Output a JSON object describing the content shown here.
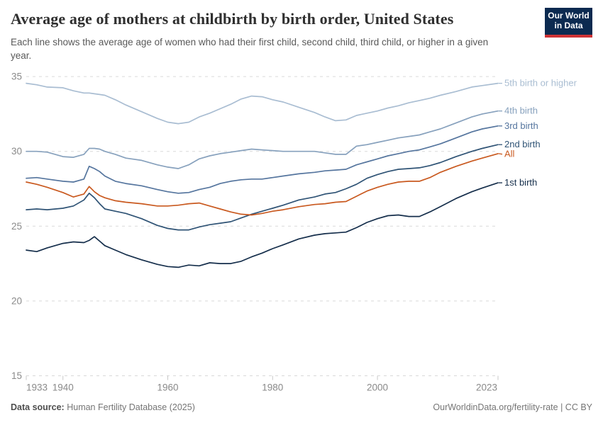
{
  "header": {
    "title": "Average age of mothers at childbirth by birth order, United States",
    "subtitle": "Each line shows the average age of women who had their first child, second child, third child, or higher in a given year.",
    "logo": {
      "line1": "Our World",
      "line2": "in Data",
      "bg_color": "#0c2a50",
      "accent_color": "#cf3235"
    }
  },
  "chart_data": {
    "type": "line",
    "xlabel": "",
    "ylabel": "",
    "xlim": [
      1933,
      2023
    ],
    "ylim": [
      15,
      35
    ],
    "grid": "horizontal-dashed",
    "legend_position": "right-of-line-ends",
    "xticks": [
      1933,
      1940,
      1960,
      1980,
      2000,
      2023
    ],
    "yticks": [
      15,
      20,
      25,
      30,
      35
    ],
    "x": [
      1933,
      1935,
      1937,
      1940,
      1942,
      1944,
      1945,
      1946,
      1947,
      1948,
      1950,
      1952,
      1955,
      1958,
      1960,
      1962,
      1964,
      1966,
      1968,
      1970,
      1972,
      1974,
      1976,
      1978,
      1980,
      1982,
      1985,
      1988,
      1990,
      1992,
      1994,
      1996,
      1998,
      2000,
      2002,
      2004,
      2006,
      2008,
      2010,
      2012,
      2015,
      2018,
      2020,
      2023
    ],
    "series": [
      {
        "name": "5th birth or higher",
        "color": "#a9bdd2",
        "values": [
          34.55,
          34.45,
          34.3,
          34.25,
          34.05,
          33.9,
          33.9,
          33.85,
          33.8,
          33.75,
          33.45,
          33.1,
          32.65,
          32.2,
          31.95,
          31.85,
          31.95,
          32.3,
          32.55,
          32.85,
          33.15,
          33.5,
          33.7,
          33.65,
          33.45,
          33.3,
          32.95,
          32.6,
          32.3,
          32.05,
          32.1,
          32.4,
          32.55,
          32.7,
          32.9,
          33.05,
          33.25,
          33.4,
          33.55,
          33.75,
          34.0,
          34.3,
          34.4,
          34.55
        ]
      },
      {
        "name": "4th birth",
        "color": "#87a1bd",
        "values": [
          30.0,
          30.0,
          29.95,
          29.65,
          29.6,
          29.8,
          30.2,
          30.2,
          30.15,
          30.0,
          29.8,
          29.55,
          29.4,
          29.1,
          28.95,
          28.85,
          29.1,
          29.5,
          29.7,
          29.85,
          29.95,
          30.05,
          30.15,
          30.1,
          30.05,
          30.0,
          30.0,
          30.0,
          29.9,
          29.8,
          29.8,
          30.35,
          30.45,
          30.6,
          30.75,
          30.9,
          31.0,
          31.1,
          31.3,
          31.5,
          31.9,
          32.3,
          32.5,
          32.7
        ]
      },
      {
        "name": "3rd birth",
        "color": "#55759e",
        "values": [
          28.2,
          28.25,
          28.15,
          28.0,
          27.95,
          28.15,
          29.0,
          28.85,
          28.65,
          28.35,
          28.0,
          27.85,
          27.7,
          27.45,
          27.3,
          27.2,
          27.25,
          27.45,
          27.6,
          27.85,
          28.0,
          28.1,
          28.15,
          28.15,
          28.25,
          28.35,
          28.5,
          28.6,
          28.7,
          28.75,
          28.8,
          29.1,
          29.3,
          29.5,
          29.7,
          29.85,
          30.0,
          30.1,
          30.3,
          30.5,
          30.9,
          31.3,
          31.5,
          31.7
        ]
      },
      {
        "name": "2nd birth",
        "color": "#2f5375",
        "values": [
          26.1,
          26.15,
          26.1,
          26.2,
          26.35,
          26.75,
          27.2,
          26.9,
          26.5,
          26.15,
          26.0,
          25.85,
          25.5,
          25.05,
          24.85,
          24.75,
          24.75,
          24.95,
          25.1,
          25.2,
          25.3,
          25.55,
          25.8,
          26.0,
          26.2,
          26.4,
          26.75,
          26.95,
          27.15,
          27.25,
          27.5,
          27.8,
          28.2,
          28.45,
          28.65,
          28.8,
          28.85,
          28.9,
          29.05,
          29.25,
          29.65,
          30.0,
          30.2,
          30.45
        ]
      },
      {
        "name": "All",
        "color": "#c9591f",
        "values": [
          27.95,
          27.8,
          27.6,
          27.25,
          26.95,
          27.15,
          27.65,
          27.3,
          27.05,
          26.9,
          26.7,
          26.6,
          26.5,
          26.35,
          26.35,
          26.4,
          26.5,
          26.55,
          26.35,
          26.15,
          25.95,
          25.8,
          25.75,
          25.85,
          26.0,
          26.1,
          26.3,
          26.45,
          26.5,
          26.6,
          26.65,
          27.0,
          27.35,
          27.6,
          27.8,
          27.95,
          28.0,
          28.0,
          28.25,
          28.6,
          29.0,
          29.35,
          29.55,
          29.85
        ]
      },
      {
        "name": "1st birth",
        "color": "#152e4b",
        "values": [
          23.4,
          23.3,
          23.55,
          23.85,
          23.95,
          23.9,
          24.05,
          24.3,
          24.0,
          23.7,
          23.4,
          23.1,
          22.75,
          22.45,
          22.3,
          22.25,
          22.4,
          22.35,
          22.55,
          22.5,
          22.5,
          22.65,
          22.95,
          23.2,
          23.5,
          23.75,
          24.15,
          24.4,
          24.5,
          24.55,
          24.6,
          24.9,
          25.25,
          25.5,
          25.7,
          25.75,
          25.65,
          25.65,
          25.95,
          26.3,
          26.85,
          27.3,
          27.55,
          27.9
        ]
      }
    ],
    "axis_colors": {
      "gridline": "#d9d9d9",
      "tick": "#c9c9c9",
      "tick_label": "#8a8a8a"
    }
  },
  "footer": {
    "source_label": "Data source:",
    "source_value": "Human Fertility Database (2025)",
    "right_text": "OurWorldinData.org/fertility-rate | CC BY"
  }
}
